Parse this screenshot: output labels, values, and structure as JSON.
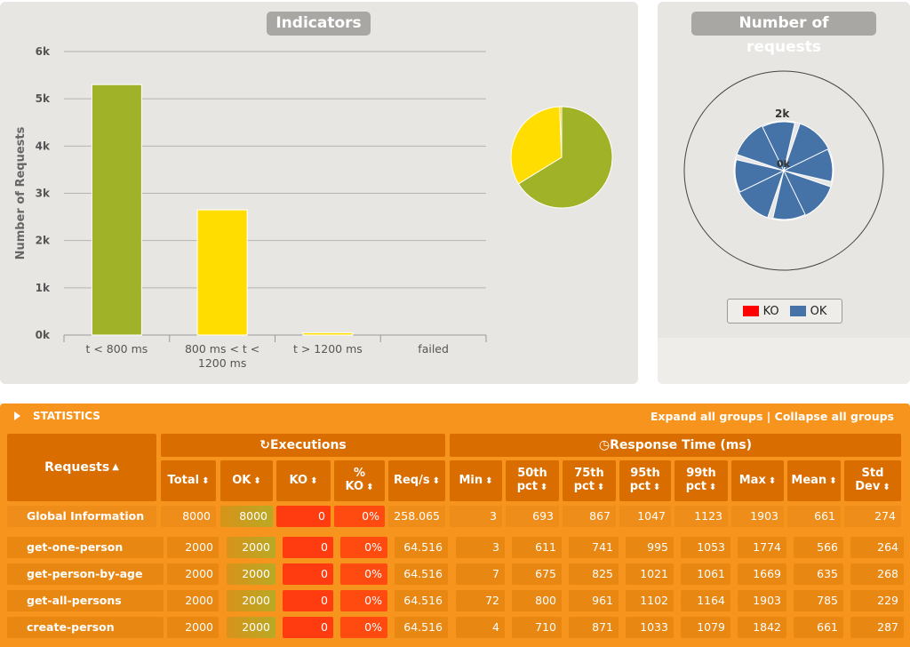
{
  "indicators": {
    "title": "Indicators",
    "chart_data": {
      "type": "bar",
      "categories": [
        "t < 800 ms",
        "800 ms < t < 1200 ms",
        "t > 1200 ms",
        "failed"
      ],
      "category_lines": [
        [
          "t < 800 ms"
        ],
        [
          "800 ms < t <",
          "1200 ms"
        ],
        [
          "t > 1200 ms"
        ],
        [
          "failed"
        ]
      ],
      "values": [
        5300,
        2650,
        50,
        0
      ],
      "colors": [
        "#a0b228",
        "#ffdd00",
        "#ffdd00",
        "#ff0000"
      ],
      "ylabel": "Number of Requests",
      "ylim": [
        0,
        6000
      ],
      "yticks": [
        0,
        1000,
        2000,
        3000,
        4000,
        5000,
        6000
      ],
      "ytick_labels": [
        "0k",
        "1k",
        "2k",
        "3k",
        "4k",
        "5k",
        "6k"
      ],
      "grid": true
    },
    "pie": {
      "type": "pie",
      "values": [
        5300,
        2650,
        50
      ],
      "colors": [
        "#a0b228",
        "#ffdd00",
        "#f5c400"
      ]
    }
  },
  "requests_chart": {
    "title": "Number of requests",
    "chart_data": {
      "type": "pie",
      "series": [
        {
          "name": "OK",
          "values": [
            2000,
            2000,
            2000,
            2000
          ]
        }
      ],
      "tick_labels": [
        "2k",
        "0k"
      ],
      "colors": [
        "#4572a7",
        "#4572a7",
        "#4572a7",
        "#4572a7"
      ]
    },
    "legend": [
      {
        "label": "KO",
        "color": "#ff0000"
      },
      {
        "label": "OK",
        "color": "#4572a7"
      }
    ]
  },
  "statistics": {
    "title": "STATISTICS",
    "expand_label": "Expand all groups",
    "separator": " | ",
    "collapse_label": "Collapse all groups",
    "requests_header": "Requests",
    "executions_header": "Executions",
    "response_time_header": "Response Time (ms)",
    "columns": [
      {
        "key": "total",
        "label": "Total"
      },
      {
        "key": "ok",
        "label": "OK"
      },
      {
        "key": "ko",
        "label": "KO"
      },
      {
        "key": "pct_ko",
        "label": "% KO"
      },
      {
        "key": "reqs",
        "label": "Req/s"
      },
      {
        "key": "min",
        "label": "Min"
      },
      {
        "key": "p50",
        "label": "50th pct"
      },
      {
        "key": "p75",
        "label": "75th pct"
      },
      {
        "key": "p95",
        "label": "95th pct"
      },
      {
        "key": "p99",
        "label": "99th pct"
      },
      {
        "key": "max",
        "label": "Max"
      },
      {
        "key": "mean",
        "label": "Mean"
      },
      {
        "key": "std",
        "label": "Std Dev"
      }
    ],
    "rows": [
      {
        "name": "Global Information",
        "values": [
          "8000",
          "8000",
          "0",
          "0%",
          "258.065",
          "3",
          "693",
          "867",
          "1047",
          "1123",
          "1903",
          "661",
          "274"
        ]
      },
      {
        "name": "get-one-person",
        "values": [
          "2000",
          "2000",
          "0",
          "0%",
          "64.516",
          "3",
          "611",
          "741",
          "995",
          "1053",
          "1774",
          "566",
          "264"
        ]
      },
      {
        "name": "get-person-by-age",
        "values": [
          "2000",
          "2000",
          "0",
          "0%",
          "64.516",
          "7",
          "675",
          "825",
          "1021",
          "1061",
          "1669",
          "635",
          "268"
        ]
      },
      {
        "name": "get-all-persons",
        "values": [
          "2000",
          "2000",
          "0",
          "0%",
          "64.516",
          "72",
          "800",
          "961",
          "1102",
          "1164",
          "1903",
          "785",
          "229"
        ]
      },
      {
        "name": "create-person",
        "values": [
          "2000",
          "2000",
          "0",
          "0%",
          "64.516",
          "4",
          "710",
          "871",
          "1033",
          "1079",
          "1842",
          "661",
          "287"
        ]
      }
    ]
  }
}
